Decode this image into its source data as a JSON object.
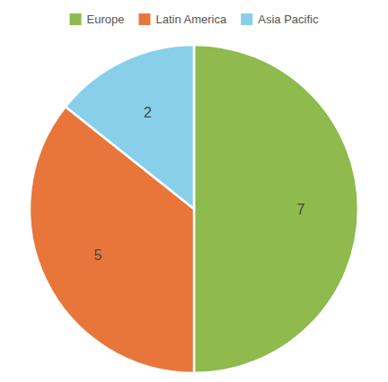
{
  "chart_data": {
    "type": "pie",
    "categories": [
      "Europe",
      "Latin America",
      "Asia Pacific"
    ],
    "values": [
      7,
      5,
      2
    ],
    "colors": [
      "#8fba4e",
      "#e8763a",
      "#88d0ea"
    ],
    "data_labels": true,
    "legend": "top"
  }
}
